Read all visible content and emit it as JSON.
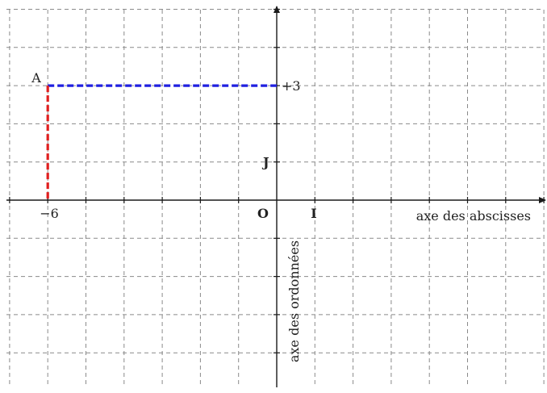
{
  "diagram": {
    "grid": {
      "x_range": [
        -7,
        7
      ],
      "y_range": [
        -5,
        5
      ],
      "step": 1,
      "line_color": "#8a8a8a",
      "line_style": "dashed"
    },
    "axes": {
      "color": "#1a1a1a",
      "x_label": "axe des abscisses",
      "y_label": "axe des ordonnées"
    },
    "origin_label": "O",
    "unit_x_label": "I",
    "unit_y_label": "J",
    "point": {
      "label": "A",
      "x": -6,
      "y": 3,
      "x_label": "−6",
      "y_label": "+3"
    },
    "horizontal_projection_color": "#1f1fe0",
    "vertical_projection_color": "#e01f1f"
  }
}
